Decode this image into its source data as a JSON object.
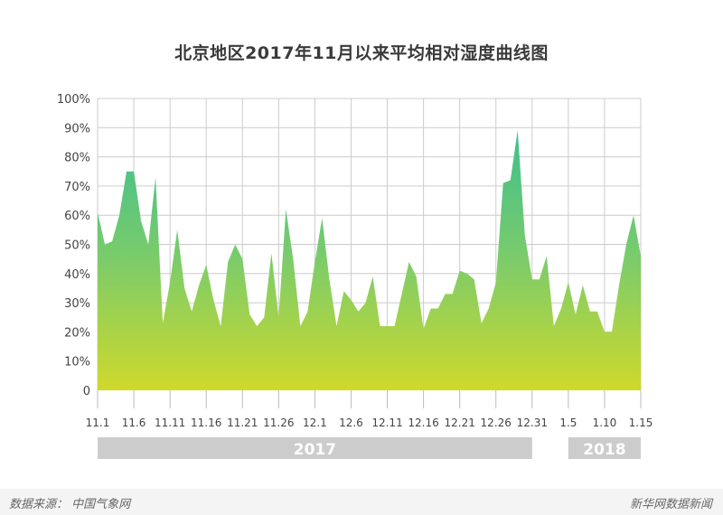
{
  "chart_data": {
    "type": "area",
    "title": "北京地区2017年11月以来平均相对湿度曲线图",
    "y_ticks": [
      "0",
      "10%",
      "20%",
      "30%",
      "40%",
      "50%",
      "60%",
      "70%",
      "80%",
      "90%",
      "100%"
    ],
    "ylim": [
      0,
      100
    ],
    "x_tick_labels": [
      "11.1",
      "11.6",
      "11.11",
      "11.16",
      "11.21",
      "11.26",
      "12.1",
      "12.6",
      "12.11",
      "12.16",
      "12.21",
      "12.26",
      "12.31",
      "1.5",
      "1.10",
      "1.15"
    ],
    "grid": true,
    "colors": {
      "top": "#3dbf8f",
      "mid": "#7ccc6a",
      "bottom": "#cfd92b",
      "grid": "#cccccc",
      "year_bar": "#cccccc"
    },
    "year_bars": [
      {
        "label": "2017",
        "start_day": 0,
        "end_day": 60
      },
      {
        "label": "2018",
        "start_day": 65,
        "end_day": 75
      }
    ],
    "series": [
      {
        "values": [
          61,
          50,
          51,
          60,
          75,
          75,
          58,
          50,
          73,
          23,
          37,
          55,
          35,
          27,
          36,
          43,
          31,
          22,
          44,
          50,
          45,
          26,
          22,
          25,
          47,
          25,
          62,
          45,
          22,
          27,
          44,
          59,
          38,
          22,
          34,
          31,
          27,
          30,
          39,
          22,
          22,
          22,
          33,
          44,
          39,
          21,
          28,
          28,
          33,
          33,
          41,
          40,
          38,
          23,
          28,
          37,
          71,
          72,
          89,
          53,
          38,
          38,
          46,
          22,
          28,
          37,
          26,
          36,
          27,
          27,
          20,
          20,
          36,
          50,
          60,
          46
        ]
      }
    ]
  },
  "footer": {
    "source": "数据来源： 中国气象网",
    "brand": "新华网数据新闻"
  }
}
